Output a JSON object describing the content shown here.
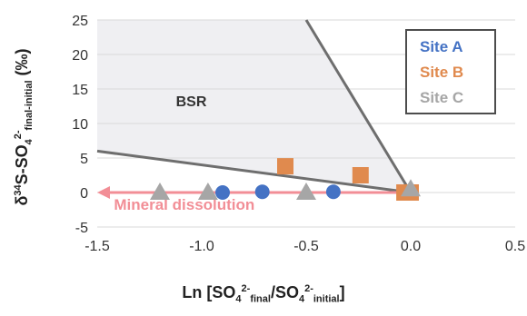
{
  "chart_data": {
    "type": "scatter",
    "xlabel_parts": [
      "Ln [SO",
      "4",
      "2-",
      "final",
      "/SO",
      "4",
      "2-",
      "initial",
      "]"
    ],
    "ylabel_parts": [
      "δ",
      "34",
      "S-SO",
      "4",
      "2-",
      "final-initial",
      " (‰)"
    ],
    "xlim": [
      -1.5,
      0.5
    ],
    "ylim": [
      -5,
      25
    ],
    "x_ticks": [
      -1.5,
      -1.0,
      -0.5,
      0.0,
      0.5
    ],
    "x_tick_labels": [
      "-1.5",
      "-1.0",
      "-0.5",
      "0.0",
      "0.5"
    ],
    "y_ticks": [
      -5,
      0,
      5,
      10,
      15,
      20,
      25
    ],
    "y_tick_labels": [
      "-5",
      "0",
      "5",
      "10",
      "15",
      "20",
      "25"
    ],
    "legend_position": "top-right",
    "series": [
      {
        "name": "Site A",
        "color": "#4472c4",
        "marker": "circle",
        "x": [
          -0.9,
          -0.71,
          -0.37,
          0.0
        ],
        "y": [
          0,
          0.1,
          0.1,
          0
        ]
      },
      {
        "name": "Site B",
        "color": "#e08a4e",
        "marker": "square",
        "x": [
          -0.6,
          -0.24,
          -0.03,
          0.0
        ],
        "y": [
          3.8,
          2.5,
          0,
          0
        ]
      },
      {
        "name": "Site C",
        "color": "#a6a6a6",
        "marker": "triangle",
        "x": [
          -1.2,
          -0.97,
          -0.5,
          0.0
        ],
        "y": [
          0,
          0,
          0,
          0.5
        ]
      }
    ],
    "bsr_region": {
      "label": "BSR",
      "lower_boundary": [
        [
          -1.5,
          6
        ],
        [
          0.0,
          0
        ]
      ],
      "upper_boundary": [
        [
          -0.5,
          25
        ],
        [
          0.0,
          0
        ]
      ],
      "fill": "#efeff2",
      "line_color": "#6e6e6e"
    },
    "dissolution_arrow": {
      "label": "Mineral dissolution",
      "from": [
        0.0,
        0
      ],
      "to": [
        -1.5,
        0
      ],
      "color": "#f28e96"
    }
  }
}
